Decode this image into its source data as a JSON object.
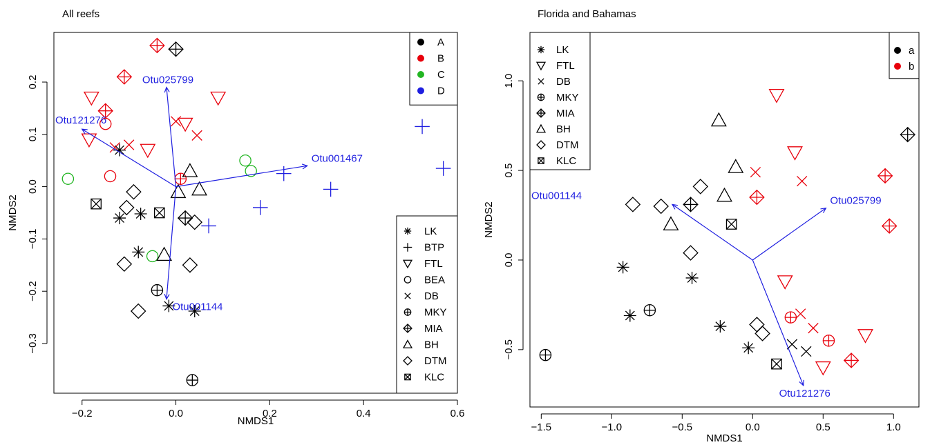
{
  "chart_data": [
    {
      "type": "scatter",
      "title": "All reefs",
      "xlabel": "NMDS1",
      "ylabel": "NMDS2",
      "xlim": [
        -0.26,
        0.6
      ],
      "ylim": [
        -0.395,
        0.295
      ],
      "xticks": [
        -0.2,
        0.0,
        0.2,
        0.4,
        0.6
      ],
      "yticks": [
        -0.3,
        -0.2,
        -0.1,
        0.0,
        0.1,
        0.2
      ],
      "xtick_labels": [
        "−0.2",
        "0.0",
        "0.2",
        "0.4",
        "0.6"
      ],
      "ytick_labels": [
        "−0.3",
        "−0.2",
        "−0.1",
        "0.0",
        "0.1",
        "0.2"
      ],
      "color_legend": {
        "position": "top-right",
        "entries": [
          {
            "label": "A",
            "color": "#000000"
          },
          {
            "label": "B",
            "color": "#e8000b"
          },
          {
            "label": "C",
            "color": "#22b522"
          },
          {
            "label": "D",
            "color": "#1f1fe0"
          }
        ]
      },
      "shape_legend": {
        "position": "bottom-right",
        "entries": [
          {
            "label": "LK",
            "shape": "asterisk"
          },
          {
            "label": "BTP",
            "shape": "plus"
          },
          {
            "label": "FTL",
            "shape": "triangle-down"
          },
          {
            "label": "BEA",
            "shape": "circle"
          },
          {
            "label": "DB",
            "shape": "cross"
          },
          {
            "label": "MKY",
            "shape": "circle-plus"
          },
          {
            "label": "MIA",
            "shape": "diamond-plus"
          },
          {
            "label": "BH",
            "shape": "triangle-up"
          },
          {
            "label": "DTM",
            "shape": "diamond"
          },
          {
            "label": "KLC",
            "shape": "square-cross"
          }
        ]
      },
      "vectors": [
        {
          "label": "Otu025799",
          "x": -0.02,
          "y": 0.19,
          "color": "#1f1fe0"
        },
        {
          "label": "Otu121276",
          "x": -0.2,
          "y": 0.11,
          "color": "#1f1fe0"
        },
        {
          "label": "Otu001467",
          "x": 0.28,
          "y": 0.04,
          "color": "#1f1fe0"
        },
        {
          "label": "Otu001144",
          "x": -0.02,
          "y": -0.215,
          "color": "#1f1fe0"
        }
      ],
      "points": [
        {
          "x": -0.04,
          "y": 0.27,
          "shape": "diamond-plus",
          "group": "B"
        },
        {
          "x": 0.0,
          "y": 0.263,
          "shape": "diamond-plus",
          "group": "A"
        },
        {
          "x": -0.11,
          "y": 0.21,
          "shape": "diamond-plus",
          "group": "B"
        },
        {
          "x": -0.18,
          "y": 0.17,
          "shape": "triangle-down",
          "group": "B"
        },
        {
          "x": 0.09,
          "y": 0.17,
          "shape": "triangle-down",
          "group": "B"
        },
        {
          "x": -0.15,
          "y": 0.145,
          "shape": "diamond-plus",
          "group": "B"
        },
        {
          "x": -0.15,
          "y": 0.12,
          "shape": "circle",
          "group": "B"
        },
        {
          "x": 0.0,
          "y": 0.125,
          "shape": "cross",
          "group": "B"
        },
        {
          "x": 0.02,
          "y": 0.12,
          "shape": "triangle-down",
          "group": "B"
        },
        {
          "x": 0.045,
          "y": 0.098,
          "shape": "cross",
          "group": "B"
        },
        {
          "x": -0.185,
          "y": 0.09,
          "shape": "triangle-down",
          "group": "B"
        },
        {
          "x": -0.13,
          "y": 0.075,
          "shape": "cross",
          "group": "B"
        },
        {
          "x": -0.12,
          "y": 0.07,
          "shape": "asterisk",
          "group": "A"
        },
        {
          "x": -0.1,
          "y": 0.08,
          "shape": "cross",
          "group": "B"
        },
        {
          "x": -0.06,
          "y": 0.07,
          "shape": "triangle-down",
          "group": "B"
        },
        {
          "x": 0.525,
          "y": 0.115,
          "shape": "plus",
          "group": "D"
        },
        {
          "x": 0.57,
          "y": 0.035,
          "shape": "plus",
          "group": "D"
        },
        {
          "x": 0.148,
          "y": 0.05,
          "shape": "circle",
          "group": "C"
        },
        {
          "x": 0.16,
          "y": 0.03,
          "shape": "circle",
          "group": "C"
        },
        {
          "x": 0.23,
          "y": 0.025,
          "shape": "plus",
          "group": "D"
        },
        {
          "x": 0.33,
          "y": -0.005,
          "shape": "plus",
          "group": "D"
        },
        {
          "x": 0.18,
          "y": -0.04,
          "shape": "plus",
          "group": "D"
        },
        {
          "x": 0.07,
          "y": -0.075,
          "shape": "plus",
          "group": "D"
        },
        {
          "x": -0.23,
          "y": 0.015,
          "shape": "circle",
          "group": "C"
        },
        {
          "x": -0.14,
          "y": 0.02,
          "shape": "circle",
          "group": "B"
        },
        {
          "x": 0.01,
          "y": 0.015,
          "shape": "circle-plus",
          "group": "B"
        },
        {
          "x": 0.03,
          "y": 0.03,
          "shape": "triangle-up",
          "group": "A"
        },
        {
          "x": 0.005,
          "y": -0.01,
          "shape": "triangle-up",
          "group": "A"
        },
        {
          "x": 0.05,
          "y": -0.005,
          "shape": "triangle-up",
          "group": "A"
        },
        {
          "x": -0.09,
          "y": -0.01,
          "shape": "diamond",
          "group": "A"
        },
        {
          "x": -0.17,
          "y": -0.033,
          "shape": "square-cross",
          "group": "A"
        },
        {
          "x": -0.105,
          "y": -0.04,
          "shape": "diamond",
          "group": "A"
        },
        {
          "x": -0.035,
          "y": -0.05,
          "shape": "square-cross",
          "group": "A"
        },
        {
          "x": -0.12,
          "y": -0.06,
          "shape": "asterisk",
          "group": "A"
        },
        {
          "x": -0.075,
          "y": -0.052,
          "shape": "asterisk",
          "group": "A"
        },
        {
          "x": 0.02,
          "y": -0.06,
          "shape": "diamond-plus",
          "group": "A"
        },
        {
          "x": 0.04,
          "y": -0.068,
          "shape": "diamond",
          "group": "A"
        },
        {
          "x": -0.08,
          "y": -0.125,
          "shape": "asterisk",
          "group": "A"
        },
        {
          "x": -0.05,
          "y": -0.133,
          "shape": "circle",
          "group": "C"
        },
        {
          "x": -0.025,
          "y": -0.13,
          "shape": "triangle-up",
          "group": "A"
        },
        {
          "x": -0.11,
          "y": -0.148,
          "shape": "diamond",
          "group": "A"
        },
        {
          "x": 0.03,
          "y": -0.15,
          "shape": "diamond",
          "group": "A"
        },
        {
          "x": -0.04,
          "y": -0.198,
          "shape": "circle-plus",
          "group": "A"
        },
        {
          "x": -0.08,
          "y": -0.238,
          "shape": "diamond",
          "group": "A"
        },
        {
          "x": -0.015,
          "y": -0.228,
          "shape": "asterisk",
          "group": "A"
        },
        {
          "x": 0.04,
          "y": -0.238,
          "shape": "asterisk",
          "group": "A"
        },
        {
          "x": 0.035,
          "y": -0.37,
          "shape": "circle-plus",
          "group": "A"
        }
      ]
    },
    {
      "type": "scatter",
      "title": "Florida and Bahamas",
      "xlabel": "NMDS1",
      "ylabel": "NMDS2",
      "xlim": [
        -1.58,
        1.18
      ],
      "ylim": [
        -0.82,
        1.27
      ],
      "xticks": [
        -1.5,
        -1.0,
        -0.5,
        0.0,
        0.5,
        1.0
      ],
      "yticks": [
        -0.5,
        0.0,
        0.5,
        1.0
      ],
      "xtick_labels": [
        "−1.5",
        "−1.0",
        "−0.5",
        "0.0",
        "0.5",
        "1.0"
      ],
      "ytick_labels": [
        "−0.5",
        "0.0",
        "0.5",
        "1.0"
      ],
      "color_legend": {
        "position": "top-right",
        "entries": [
          {
            "label": "a",
            "color": "#000000"
          },
          {
            "label": "b",
            "color": "#e8000b"
          }
        ]
      },
      "shape_legend": {
        "position": "top-left",
        "entries": [
          {
            "label": "LK",
            "shape": "asterisk"
          },
          {
            "label": "FTL",
            "shape": "triangle-down"
          },
          {
            "label": "DB",
            "shape": "cross"
          },
          {
            "label": "MKY",
            "shape": "circle-plus"
          },
          {
            "label": "MIA",
            "shape": "diamond-plus"
          },
          {
            "label": "BH",
            "shape": "triangle-up"
          },
          {
            "label": "DTM",
            "shape": "diamond"
          },
          {
            "label": "KLC",
            "shape": "square-cross"
          }
        ]
      },
      "vectors": [
        {
          "label": "Otu001144",
          "x": -0.57,
          "y": 0.31,
          "color": "#1f1fe0"
        },
        {
          "label": "Otu025799",
          "x": 0.52,
          "y": 0.29,
          "color": "#1f1fe0"
        },
        {
          "label": "Otu121276",
          "x": 0.36,
          "y": -0.7,
          "color": "#1f1fe0"
        }
      ],
      "points": [
        {
          "x": 0.17,
          "y": 0.92,
          "shape": "triangle-down",
          "group": "b"
        },
        {
          "x": -0.24,
          "y": 0.78,
          "shape": "triangle-up",
          "group": "a"
        },
        {
          "x": 1.1,
          "y": 0.7,
          "shape": "diamond-plus",
          "group": "a"
        },
        {
          "x": 0.3,
          "y": 0.6,
          "shape": "triangle-down",
          "group": "b"
        },
        {
          "x": -0.12,
          "y": 0.52,
          "shape": "triangle-up",
          "group": "a"
        },
        {
          "x": 0.02,
          "y": 0.49,
          "shape": "cross",
          "group": "b"
        },
        {
          "x": 0.94,
          "y": 0.47,
          "shape": "diamond-plus",
          "group": "b"
        },
        {
          "x": 0.35,
          "y": 0.44,
          "shape": "cross",
          "group": "b"
        },
        {
          "x": -0.37,
          "y": 0.41,
          "shape": "diamond",
          "group": "a"
        },
        {
          "x": -0.2,
          "y": 0.36,
          "shape": "triangle-up",
          "group": "a"
        },
        {
          "x": 0.03,
          "y": 0.35,
          "shape": "diamond-plus",
          "group": "b"
        },
        {
          "x": -0.85,
          "y": 0.31,
          "shape": "diamond",
          "group": "a"
        },
        {
          "x": -0.65,
          "y": 0.3,
          "shape": "diamond",
          "group": "a"
        },
        {
          "x": -0.44,
          "y": 0.31,
          "shape": "diamond-plus",
          "group": "a"
        },
        {
          "x": -0.58,
          "y": 0.2,
          "shape": "triangle-up",
          "group": "a"
        },
        {
          "x": -0.15,
          "y": 0.2,
          "shape": "square-cross",
          "group": "a"
        },
        {
          "x": 0.97,
          "y": 0.19,
          "shape": "diamond-plus",
          "group": "b"
        },
        {
          "x": -0.44,
          "y": 0.04,
          "shape": "diamond",
          "group": "a"
        },
        {
          "x": -0.92,
          "y": -0.04,
          "shape": "asterisk",
          "group": "a"
        },
        {
          "x": -0.43,
          "y": -0.1,
          "shape": "asterisk",
          "group": "a"
        },
        {
          "x": 0.23,
          "y": -0.12,
          "shape": "triangle-down",
          "group": "b"
        },
        {
          "x": -0.87,
          "y": -0.31,
          "shape": "asterisk",
          "group": "a"
        },
        {
          "x": -0.73,
          "y": -0.28,
          "shape": "circle-plus",
          "group": "a"
        },
        {
          "x": 0.27,
          "y": -0.32,
          "shape": "circle-plus",
          "group": "b"
        },
        {
          "x": 0.34,
          "y": -0.3,
          "shape": "cross",
          "group": "b"
        },
        {
          "x": -0.23,
          "y": -0.37,
          "shape": "asterisk",
          "group": "a"
        },
        {
          "x": 0.03,
          "y": -0.36,
          "shape": "diamond",
          "group": "a"
        },
        {
          "x": 0.07,
          "y": -0.41,
          "shape": "diamond",
          "group": "a"
        },
        {
          "x": 0.43,
          "y": -0.38,
          "shape": "cross",
          "group": "b"
        },
        {
          "x": 0.8,
          "y": -0.42,
          "shape": "triangle-down",
          "group": "b"
        },
        {
          "x": 0.54,
          "y": -0.45,
          "shape": "circle-plus",
          "group": "b"
        },
        {
          "x": -0.03,
          "y": -0.49,
          "shape": "asterisk",
          "group": "a"
        },
        {
          "x": 0.28,
          "y": -0.47,
          "shape": "cross",
          "group": "a"
        },
        {
          "x": 0.38,
          "y": -0.51,
          "shape": "cross",
          "group": "a"
        },
        {
          "x": -1.47,
          "y": -0.53,
          "shape": "circle-plus",
          "group": "a"
        },
        {
          "x": 0.7,
          "y": -0.56,
          "shape": "diamond-plus",
          "group": "b"
        },
        {
          "x": 0.17,
          "y": -0.58,
          "shape": "square-cross",
          "group": "a"
        },
        {
          "x": 0.5,
          "y": -0.6,
          "shape": "triangle-down",
          "group": "b"
        }
      ]
    }
  ]
}
